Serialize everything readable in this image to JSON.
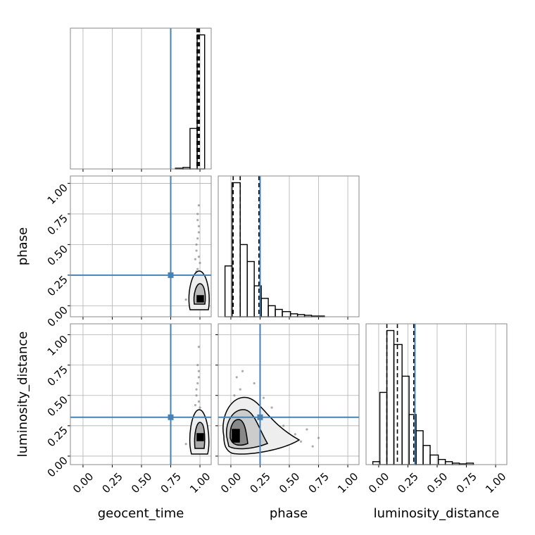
{
  "chart_data": [
    {
      "type": "histogram",
      "xlim": [
        -0.108,
        1.096
      ],
      "xgrid": [
        0,
        0.25,
        0.5,
        0.75,
        1.0
      ],
      "bins": [
        0.79,
        0.855,
        0.915,
        0.976,
        1.04
      ],
      "counts": [
        1,
        2,
        55,
        182
      ],
      "quantiles": [
        0.975,
        0.985,
        0.995
      ],
      "truth": 0.75,
      "color": "#000000",
      "truth_color": "#4682b4"
    },
    {
      "type": "scatter",
      "xlim": [
        -0.108,
        1.096
      ],
      "ylim": [
        -0.09,
        1.06
      ],
      "xgrid": [
        0,
        0.25,
        0.5,
        0.75,
        1.0
      ],
      "yticks": [
        0,
        0.25,
        0.5,
        0.75,
        {
          "value": 1.0,
          "label": "1.00"
        }
      ],
      "ytick_labels": [
        "0.00",
        "0.25",
        "0.50",
        "0.75",
        "1.00"
      ],
      "ylabel": "phase",
      "x": [
        0.97,
        0.98,
        0.99,
        1.0,
        0.96,
        0.98,
        0.99,
        1.0,
        0.95,
        0.97,
        0.99,
        1.0,
        0.98,
        0.97,
        0.99,
        0.93,
        0.88,
        0.98,
        1.0,
        0.99,
        0.97,
        0.96,
        1.0,
        0.98
      ],
      "y": [
        0.05,
        0.1,
        0.15,
        0.08,
        0.2,
        0.3,
        0.4,
        0.25,
        0.12,
        0.5,
        0.6,
        0.35,
        0.7,
        0.45,
        0.82,
        0.1,
        0.05,
        0.55,
        0.02,
        0.65,
        0.28,
        0.38,
        0.18,
        0.75
      ],
      "truth_x": 0.75,
      "truth_y": 0.25,
      "truth_color": "#4682b4"
    },
    {
      "type": "histogram",
      "xlim": [
        -0.108,
        1.096
      ],
      "xgrid": [
        0,
        0.25,
        0.5,
        0.75,
        1.0
      ],
      "bins": [
        -0.05,
        0.01,
        0.08,
        0.14,
        0.2,
        0.26,
        0.32,
        0.38,
        0.44,
        0.51,
        0.57,
        0.63,
        0.69,
        0.8
      ],
      "counts": [
        69,
        182,
        98,
        75,
        42,
        25,
        15,
        10,
        7,
        4,
        3,
        2,
        1
      ],
      "quantiles": [
        0.02,
        0.08,
        0.24
      ],
      "truth": 0.25,
      "color": "#000000",
      "truth_color": "#4682b4"
    },
    {
      "type": "scatter",
      "xlim": [
        -0.108,
        1.096
      ],
      "ylim": [
        -0.07,
        1.09
      ],
      "xticks": [
        0,
        0.25,
        0.5,
        0.75,
        1.0
      ],
      "xtick_labels": [
        "0.00",
        "0.25",
        "0.50",
        "0.75",
        "1.00"
      ],
      "xlabel": "geocent_time",
      "yticks": [
        0,
        0.25,
        0.5,
        0.75,
        1.0
      ],
      "ytick_labels": [
        "0.00",
        "0.25",
        "0.50",
        "0.75",
        "1.00"
      ],
      "ylabel": "luminosity_distance",
      "x": [
        0.97,
        0.98,
        0.99,
        1.0,
        0.96,
        0.98,
        0.99,
        1.0,
        0.95,
        0.97,
        0.99,
        1.0,
        0.98,
        0.97,
        0.99,
        0.92,
        0.88,
        0.98,
        1.0,
        0.99,
        0.97,
        0.96
      ],
      "y": [
        0.1,
        0.15,
        0.2,
        0.12,
        0.25,
        0.35,
        0.45,
        0.3,
        0.05,
        0.55,
        0.65,
        0.4,
        0.75,
        0.5,
        0.9,
        0.15,
        0.1,
        0.6,
        0.05,
        0.7,
        0.3,
        0.42
      ],
      "truth_x": 0.75,
      "truth_y": 0.32,
      "truth_color": "#4682b4"
    },
    {
      "type": "scatter",
      "xlim": [
        -0.108,
        1.096
      ],
      "ylim": [
        -0.07,
        1.09
      ],
      "xticks": [
        0,
        0.25,
        0.5,
        0.75,
        1.0
      ],
      "xtick_labels": [
        "0.00",
        "0.25",
        "0.50",
        "0.75",
        "1.00"
      ],
      "xlabel": "phase",
      "ygrid": [
        0,
        0.25,
        0.5,
        0.75,
        1.0
      ],
      "x": [
        0.02,
        0.05,
        0.1,
        0.15,
        0.2,
        0.3,
        0.4,
        0.5,
        0.6,
        0.7,
        0.08,
        0.12,
        0.25,
        0.35,
        0.45,
        0.55,
        0.03,
        0.18,
        0.28,
        0.65,
        0.75,
        0.1,
        0.22,
        0.05
      ],
      "y": [
        0.1,
        0.3,
        0.45,
        0.2,
        0.6,
        0.15,
        0.2,
        0.1,
        0.12,
        0.08,
        0.55,
        0.35,
        0.3,
        0.4,
        0.25,
        0.18,
        0.5,
        0.05,
        0.48,
        0.22,
        0.15,
        0.7,
        0.38,
        0.65
      ],
      "truth_x": 0.25,
      "truth_y": 0.32,
      "truth_color": "#4682b4"
    },
    {
      "type": "histogram",
      "xlim": [
        -0.108,
        1.096
      ],
      "xticks": [
        0,
        0.25,
        0.5,
        0.75,
        1.0
      ],
      "xtick_labels": [
        "0.00",
        "0.25",
        "0.50",
        "0.75",
        "1.00"
      ],
      "xlabel": "luminosity_distance",
      "bins": [
        -0.05,
        0.01,
        0.07,
        0.13,
        0.2,
        0.26,
        0.32,
        0.38,
        0.44,
        0.51,
        0.57,
        0.63,
        0.69,
        0.75,
        0.81
      ],
      "counts": [
        4,
        98,
        182,
        163,
        120,
        68,
        46,
        26,
        13,
        7,
        4,
        2,
        1,
        2
      ],
      "quantiles": [
        0.07,
        0.16,
        0.3
      ],
      "truth": 0.31,
      "color": "#000000",
      "truth_color": "#4682b4"
    }
  ]
}
